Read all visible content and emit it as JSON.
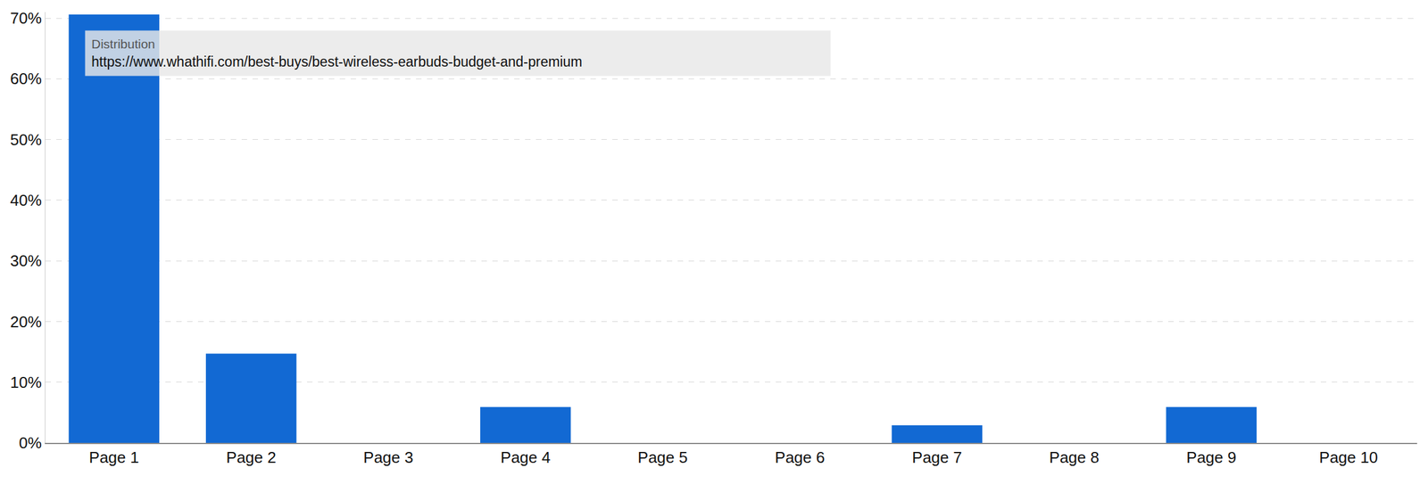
{
  "chart_data": {
    "type": "bar",
    "categories": [
      "Page 1",
      "Page 2",
      "Page 3",
      "Page 4",
      "Page 5",
      "Page 6",
      "Page 7",
      "Page 8",
      "Page 9",
      "Page 10"
    ],
    "values": [
      70.6,
      14.7,
      0,
      5.9,
      0,
      0,
      2.9,
      0,
      5.9,
      0
    ],
    "color": "#1269d3",
    "ylim": [
      0,
      71
    ],
    "yticks": [
      {
        "value": 0,
        "label": "0%"
      },
      {
        "value": 10,
        "label": "10%"
      },
      {
        "value": 20,
        "label": "20%"
      },
      {
        "value": 30,
        "label": "30%"
      },
      {
        "value": 40,
        "label": "40%"
      },
      {
        "value": 50,
        "label": "50%"
      },
      {
        "value": 60,
        "label": "60%"
      },
      {
        "value": 70,
        "label": "70%"
      }
    ],
    "grid": true,
    "annotations": [
      {
        "title": "Distribution",
        "text": "https://www.whathifi.com/best-buys/best-wireless-earbuds-budget-and-premium"
      }
    ]
  }
}
